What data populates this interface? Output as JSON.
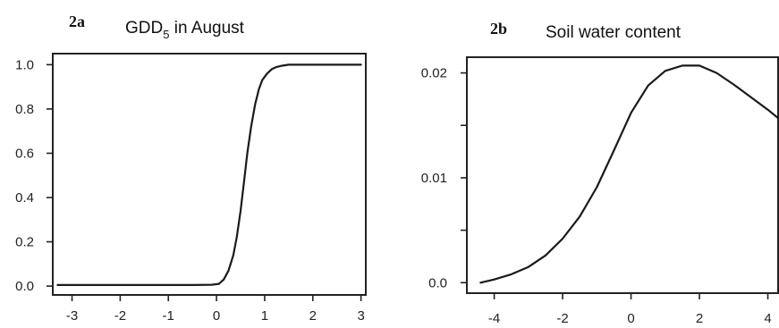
{
  "chart_data": [
    {
      "type": "line",
      "panel_label": "2a",
      "title_main": "GDD",
      "title_sub": "5",
      "title_rest": " in August",
      "xlabel": "",
      "ylabel": "",
      "xlim": [
        -3.4,
        3.1
      ],
      "ylim": [
        -0.04,
        1.05
      ],
      "xticks": [
        -3,
        -2,
        -1,
        0,
        1,
        2,
        3
      ],
      "xtick_labels": [
        "-3",
        "-2",
        "-1",
        "0",
        "1",
        "2",
        "3"
      ],
      "yticks": [
        0.0,
        0.2,
        0.4,
        0.6,
        0.8,
        1.0
      ],
      "ytick_labels": [
        "0.0",
        "0.2",
        "0.4",
        "0.6",
        "0.8",
        "1.0"
      ],
      "grid": false,
      "series": [
        {
          "x": [
            -3.3,
            -2.5,
            -1.5,
            -0.5,
            -0.1,
            0.05,
            0.15,
            0.25,
            0.35,
            0.42,
            0.5,
            0.57,
            0.64,
            0.72,
            0.8,
            0.88,
            0.95,
            1.05,
            1.15,
            1.25,
            1.35,
            1.5,
            2.0,
            2.5,
            3.0
          ],
          "y": [
            0.005,
            0.005,
            0.005,
            0.005,
            0.006,
            0.01,
            0.03,
            0.07,
            0.14,
            0.22,
            0.34,
            0.47,
            0.6,
            0.72,
            0.82,
            0.89,
            0.93,
            0.96,
            0.98,
            0.99,
            0.995,
            1.0,
            1.0,
            1.0,
            1.0
          ]
        }
      ]
    },
    {
      "type": "line",
      "panel_label": "2b",
      "title_main": "Soil water content",
      "title_sub": "",
      "title_rest": "",
      "xlabel": "",
      "ylabel": "",
      "xlim": [
        -4.8,
        4.3
      ],
      "ylim": [
        -0.001,
        0.0215
      ],
      "xticks": [
        -4,
        -2,
        0,
        2,
        4
      ],
      "xtick_labels": [
        "-4",
        "-2",
        "0",
        "2",
        "4"
      ],
      "yticks": [
        0.0,
        0.005,
        0.01,
        0.015,
        0.02
      ],
      "ytick_labels": [
        "0.0",
        "",
        "0.01",
        "",
        "0.02"
      ],
      "grid": false,
      "series": [
        {
          "x": [
            -4.4,
            -4.0,
            -3.5,
            -3.0,
            -2.5,
            -2.0,
            -1.5,
            -1.0,
            -0.5,
            0.0,
            0.5,
            1.0,
            1.5,
            2.0,
            2.5,
            3.0,
            3.5,
            4.0,
            4.3
          ],
          "y": [
            0.0,
            0.0003,
            0.0008,
            0.0015,
            0.0026,
            0.0042,
            0.0063,
            0.0091,
            0.0126,
            0.0162,
            0.0188,
            0.0202,
            0.0207,
            0.0207,
            0.02,
            0.0189,
            0.0177,
            0.0165,
            0.0157
          ]
        }
      ]
    }
  ]
}
